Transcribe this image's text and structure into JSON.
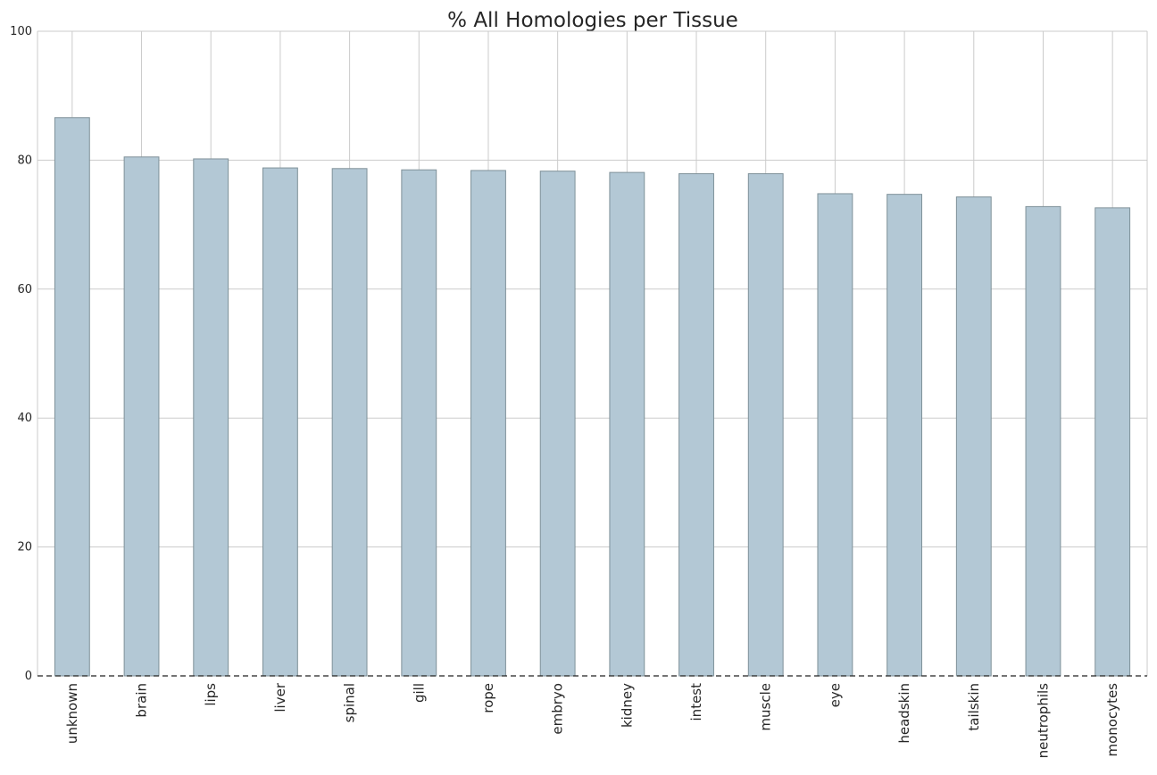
{
  "chart_data": {
    "type": "bar",
    "title": "% All Homologies per Tissue",
    "xlabel": "",
    "ylabel": "",
    "categories": [
      "unknown",
      "brain",
      "lips",
      "liver",
      "spinal",
      "gill",
      "rope",
      "embryo",
      "kidney",
      "intest",
      "muscle",
      "eye",
      "headskin",
      "tailskin",
      "neutrophils",
      "monocytes"
    ],
    "values": [
      86.6,
      80.5,
      80.2,
      78.8,
      78.7,
      78.5,
      78.4,
      78.3,
      78.1,
      77.9,
      77.9,
      74.8,
      74.7,
      74.3,
      72.8,
      72.6
    ],
    "ylim": [
      0,
      100
    ],
    "yticks": [
      0,
      20,
      40,
      60,
      80,
      100
    ],
    "grid": true,
    "legend": "none",
    "bar_color": "#b3c8d5",
    "bar_edge_color": "#7f9199",
    "grid_color": "#cbcbcb",
    "baseline_style": "dashed"
  }
}
